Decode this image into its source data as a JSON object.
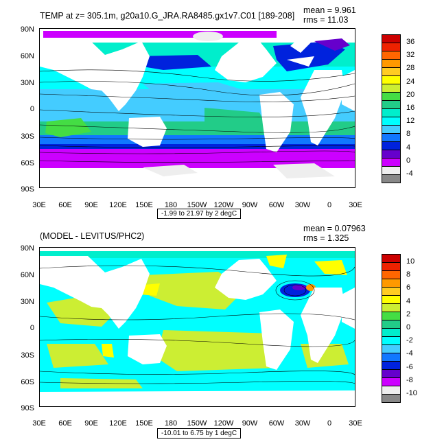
{
  "panels": [
    {
      "title": "TEMP at z= 305.1m, g20a10.G_JRA.RA8485.gx1v7.C01 [189-208]",
      "mean": "mean = 9.961",
      "rms": "rms = 11.03",
      "contour_info": "-1.99 to 21.97 by 2 degC",
      "colorbar": {
        "labels": [
          "36",
          "32",
          "28",
          "24",
          "20",
          "16",
          "12",
          "8",
          "4",
          "0",
          "-4"
        ],
        "colors": [
          "#cc0000",
          "#ee2200",
          "#ff6600",
          "#ff9900",
          "#ffcc22",
          "#ffff00",
          "#ccee33",
          "#44dd44",
          "#22cc88",
          "#00eecc",
          "#00ffff",
          "#44ccff",
          "#1177ff",
          "#0022dd",
          "#6600cc",
          "#cc00ff",
          "#eeeeee",
          "#888888"
        ]
      }
    },
    {
      "title": "(MODEL - LEVITUS/PHC2)",
      "mean": "mean = 0.07963",
      "rms": "rms = 1.325",
      "contour_info": "-10.01 to 6.75 by 1 degC",
      "colorbar": {
        "labels": [
          "10",
          "8",
          "6",
          "4",
          "2",
          "0",
          "-2",
          "-4",
          "-6",
          "-8",
          "-10"
        ],
        "colors": [
          "#cc0000",
          "#ee2200",
          "#ff6600",
          "#ff9900",
          "#ffcc22",
          "#ffff00",
          "#ccee33",
          "#44dd44",
          "#22cc88",
          "#00eecc",
          "#00ffff",
          "#44ccff",
          "#1177ff",
          "#0022dd",
          "#6600cc",
          "#cc00ff",
          "#eeeeee",
          "#888888"
        ]
      }
    }
  ],
  "lat_labels": [
    "90N",
    "60N",
    "30N",
    "0",
    "30S",
    "60S",
    "90S"
  ],
  "lon_labels": [
    "30E",
    "60E",
    "90E",
    "120E",
    "150E",
    "180",
    "150W",
    "120W",
    "90W",
    "60W",
    "30W",
    "0",
    "30E"
  ]
}
